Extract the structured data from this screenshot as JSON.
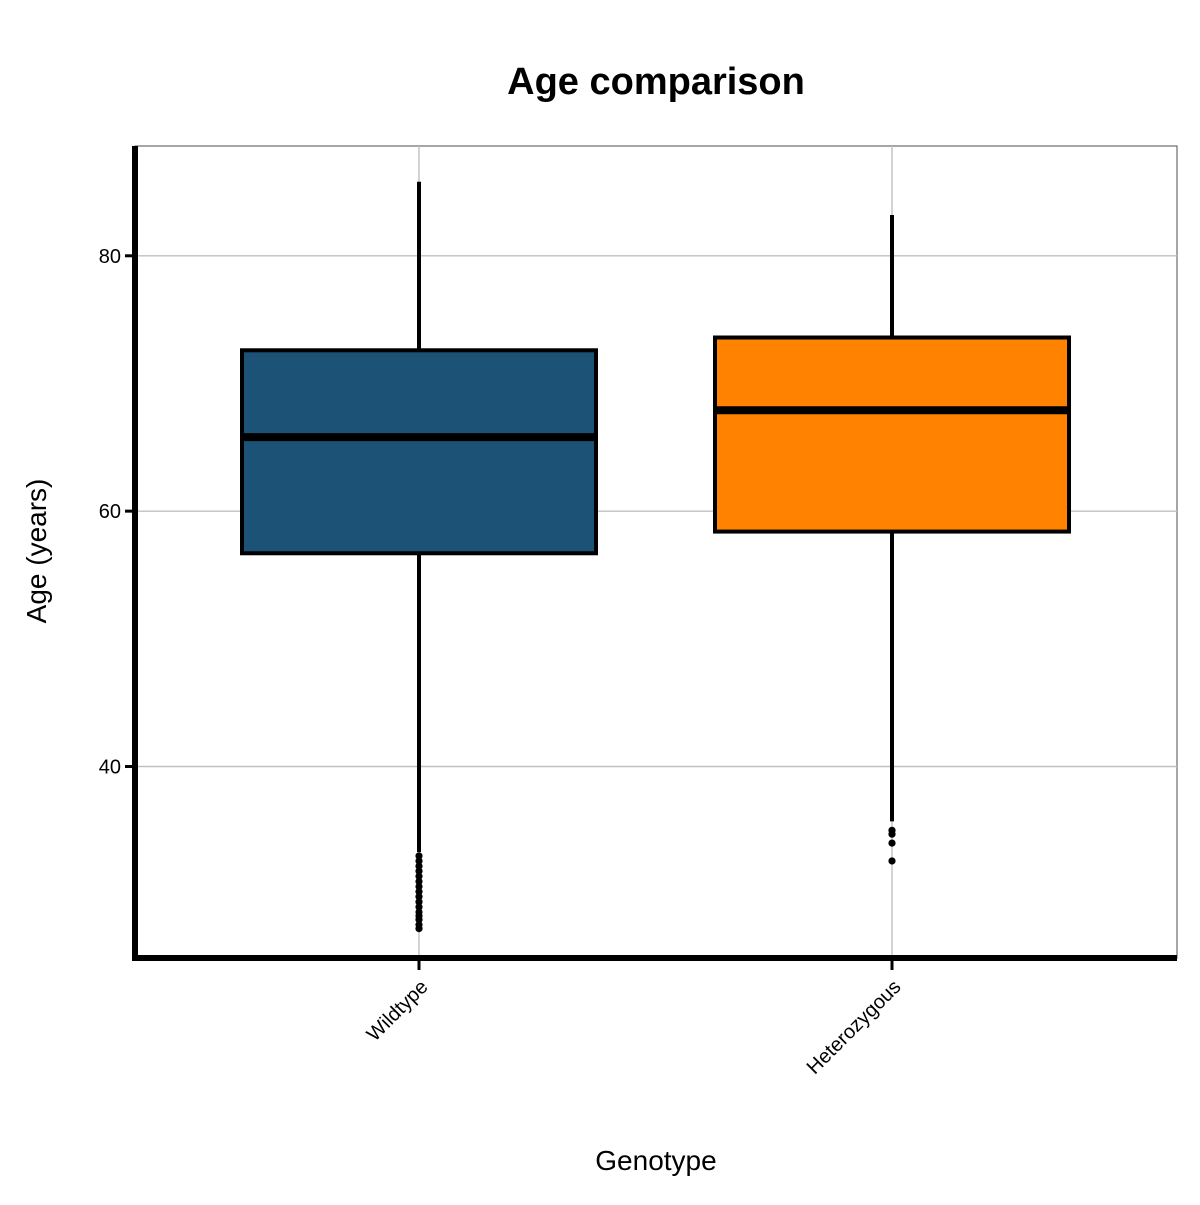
{
  "chart_data": {
    "type": "box",
    "title": "Age comparison",
    "xlabel": "Genotype",
    "ylabel": "Age (years)",
    "categories": [
      "Wildtype",
      "Heterozygous"
    ],
    "ylim": [
      25,
      88.6
    ],
    "yticks": [
      40,
      60,
      80
    ],
    "grid": true,
    "legend": "none",
    "boxes": [
      {
        "category": "Wildtype",
        "color": "#1c5276",
        "whisker_low": 33.3,
        "q1": 56.7,
        "median": 65.8,
        "q3": 72.6,
        "whisker_high": 85.8,
        "outliers": [
          33.0,
          32.6,
          32.2,
          31.8,
          31.4,
          31.0,
          30.6,
          30.2,
          29.8,
          29.4,
          29.0,
          28.6,
          28.3,
          28.0,
          27.6,
          27.3
        ]
      },
      {
        "category": "Heterozygous",
        "color": "#ff8200",
        "whisker_low": 35.7,
        "q1": 58.4,
        "median": 67.9,
        "q3": 73.6,
        "whisker_high": 83.2,
        "outliers": [
          35.0,
          34.7,
          34.0,
          32.6
        ]
      }
    ]
  }
}
